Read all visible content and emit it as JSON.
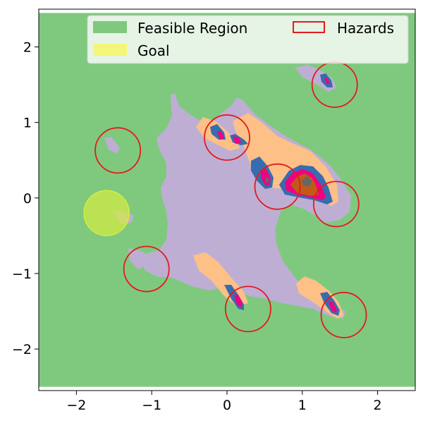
{
  "chart_data": {
    "type": "contour",
    "title": "",
    "xlabel": "",
    "ylabel": "",
    "xlim": [
      -2.5,
      2.5
    ],
    "ylim": [
      -2.55,
      2.5
    ],
    "xticks": [
      {
        "value": -2,
        "label": "−2"
      },
      {
        "value": -1,
        "label": "−1"
      },
      {
        "value": 0,
        "label": "0"
      },
      {
        "value": 1,
        "label": "1"
      },
      {
        "value": 2,
        "label": "2"
      }
    ],
    "yticks": [
      {
        "value": 2,
        "label": "2"
      },
      {
        "value": 1,
        "label": "1"
      },
      {
        "value": 0,
        "label": "0"
      },
      {
        "value": -1,
        "label": "−1"
      },
      {
        "value": -2,
        "label": "−2"
      }
    ],
    "legend": {
      "placement": "top-right",
      "entries": [
        {
          "label": "Feasible Region",
          "color": "#7fc97f",
          "style": "filled"
        },
        {
          "label": "Goal",
          "color": "#f4f67a",
          "style": "filled"
        },
        {
          "label": "Hazards",
          "color": "#e41a1c",
          "style": "outline"
        }
      ]
    },
    "feasible_region": {
      "color": "#7fc97f"
    },
    "goal": {
      "center": [
        -1.6,
        -0.2
      ],
      "radius": 0.3,
      "color": "#d4ec3e",
      "opacity": 0.7
    },
    "hazards": {
      "color": "#e41a1c",
      "radius": 0.3,
      "centers": [
        [
          1.43,
          1.5
        ],
        [
          0.0,
          0.8
        ],
        [
          -1.45,
          0.63
        ],
        [
          0.67,
          0.15
        ],
        [
          1.45,
          -0.08
        ],
        [
          -1.07,
          -0.94
        ],
        [
          0.28,
          -1.47
        ],
        [
          1.55,
          -1.55
        ]
      ]
    },
    "contour_levels": [
      {
        "name": "level-1",
        "color": "#beaed4"
      },
      {
        "name": "level-2",
        "color": "#fdc086"
      },
      {
        "name": "level-3",
        "color": "#386cb0"
      },
      {
        "name": "level-4",
        "color": "#f0027f"
      },
      {
        "name": "level-5",
        "color": "#bf5b17"
      },
      {
        "name": "level-6",
        "color": "#666666"
      }
    ]
  }
}
